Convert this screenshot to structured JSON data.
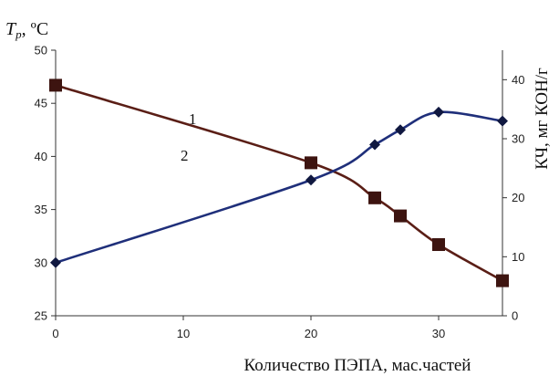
{
  "chart_data": {
    "type": "line",
    "x_axis": {
      "label": "Количество ПЭПА, мас.частей",
      "ticks": [
        0,
        10,
        20,
        30
      ],
      "range": [
        0,
        35
      ]
    },
    "y_left": {
      "label_main": "T",
      "label_sub": "p",
      "label_unit": ", ºC",
      "ticks": [
        25,
        30,
        35,
        40,
        45,
        50
      ],
      "range": [
        25,
        50
      ]
    },
    "y_right": {
      "label": "КЧ, мг КОН/г",
      "ticks": [
        0,
        10,
        20,
        30,
        40
      ],
      "range": [
        0,
        45
      ]
    },
    "grid": false,
    "series": [
      {
        "name": "1",
        "axis": "left",
        "marker": "square",
        "line_color": "#5a1e16",
        "marker_color": "#3d1410",
        "x": [
          0,
          20,
          25,
          27,
          30,
          35
        ],
        "y": [
          46.7,
          39.4,
          36.1,
          34.4,
          31.7,
          28.3
        ]
      },
      {
        "name": "2",
        "axis": "right",
        "marker": "diamond",
        "line_color": "#1f2f7a",
        "marker_color": "#101840",
        "x": [
          0,
          20,
          25,
          27,
          30,
          35
        ],
        "y": [
          9,
          23,
          29,
          31.5,
          34.5,
          33
        ]
      }
    ],
    "annotations": [
      {
        "text": "1",
        "series": "1"
      },
      {
        "text": "2",
        "series": "2"
      }
    ]
  }
}
